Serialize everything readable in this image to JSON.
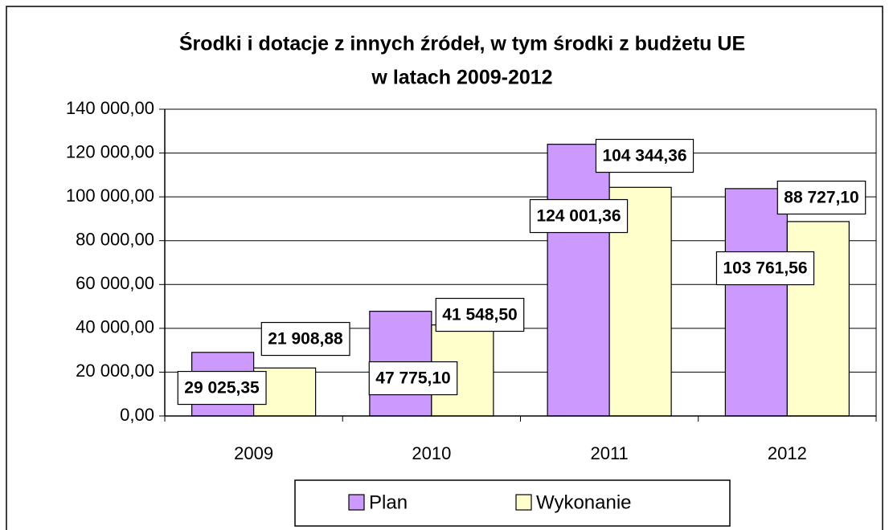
{
  "chart_data": {
    "type": "bar",
    "title": [
      "Środki i dotacje z innych źródeł, w tym środki z budżetu UE",
      "w latach 2009-2012"
    ],
    "categories": [
      "2009",
      "2010",
      "2011",
      "2012"
    ],
    "series": [
      {
        "name": "Plan",
        "color": "#cc99ff",
        "values": [
          29025.35,
          47775.1,
          124001.36,
          103761.56
        ],
        "value_labels": [
          "29 025,35",
          "47 775,10",
          "124 001,36",
          "103 761,56"
        ]
      },
      {
        "name": "Wykonanie",
        "color": "#ffffcc",
        "values": [
          21908.88,
          41548.5,
          104344.36,
          88727.1
        ],
        "value_labels": [
          "21 908,88",
          "41 548,50",
          "104 344,36",
          "88 727,10"
        ]
      }
    ],
    "ylim": [
      0,
      140000
    ],
    "yticks": [
      {
        "value": 0,
        "label": "0,00"
      },
      {
        "value": 20000,
        "label": "20 000,00"
      },
      {
        "value": 40000,
        "label": "40 000,00"
      },
      {
        "value": 60000,
        "label": "60 000,00"
      },
      {
        "value": 80000,
        "label": "80 000,00"
      },
      {
        "value": 100000,
        "label": "100 000,00"
      },
      {
        "value": 120000,
        "label": "120 000,00"
      },
      {
        "value": 140000,
        "label": "140 000,00"
      }
    ],
    "grid": true,
    "legend": "bottom"
  }
}
